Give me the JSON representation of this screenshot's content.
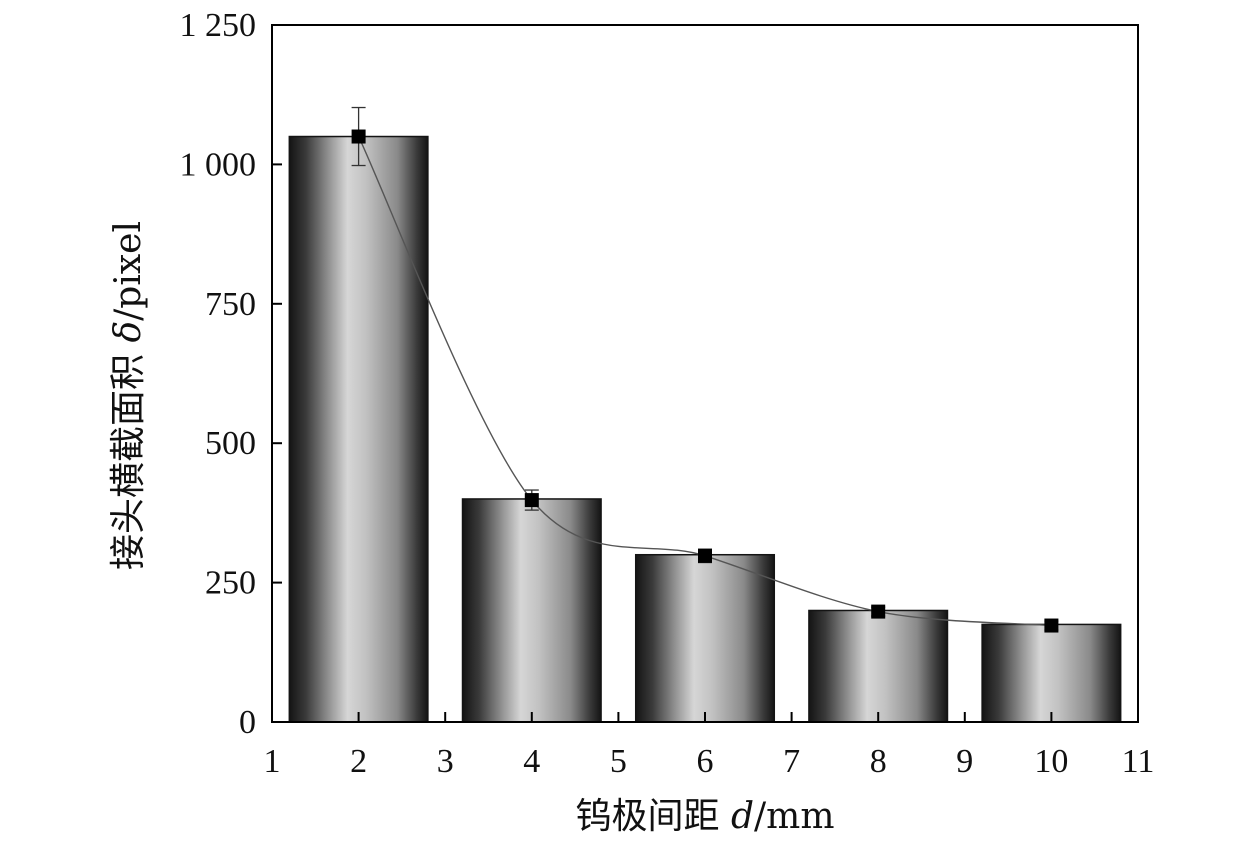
{
  "chart_data": {
    "type": "bar",
    "x": [
      2,
      4,
      6,
      8,
      10
    ],
    "values": [
      1050,
      400,
      300,
      200,
      175
    ],
    "bar_width": 1.6,
    "line_series": {
      "x": [
        2,
        4,
        6,
        8,
        10
      ],
      "values": [
        1050,
        398,
        298,
        198,
        173
      ],
      "error": [
        52,
        18,
        12,
        8,
        8
      ],
      "marker": "square"
    },
    "xlabel": {
      "text": "钨极间距 ",
      "symbol": "d",
      "unit": "/mm"
    },
    "ylabel": {
      "text": "接头横截面积 ",
      "symbol": "δ",
      "unit": "/pixel"
    },
    "title": "",
    "xlim": [
      1,
      11
    ],
    "ylim": [
      0,
      1250
    ],
    "xticks": [
      1,
      2,
      3,
      4,
      5,
      6,
      7,
      8,
      9,
      10,
      11
    ],
    "xtick_labels": [
      "1",
      "2",
      "3",
      "4",
      "5",
      "6",
      "7",
      "8",
      "9",
      "10",
      "11"
    ],
    "yticks": [
      0,
      250,
      500,
      750,
      1000,
      1250
    ],
    "ytick_labels": [
      "0",
      "250",
      "500",
      "750",
      "1 000",
      "1 250"
    ],
    "grid": false,
    "legend": "none",
    "colors": {
      "bar_dark": "#141414",
      "bar_light": "#d2d2d2",
      "line": "#555555",
      "marker": "#000000",
      "axis": "#000000"
    }
  }
}
